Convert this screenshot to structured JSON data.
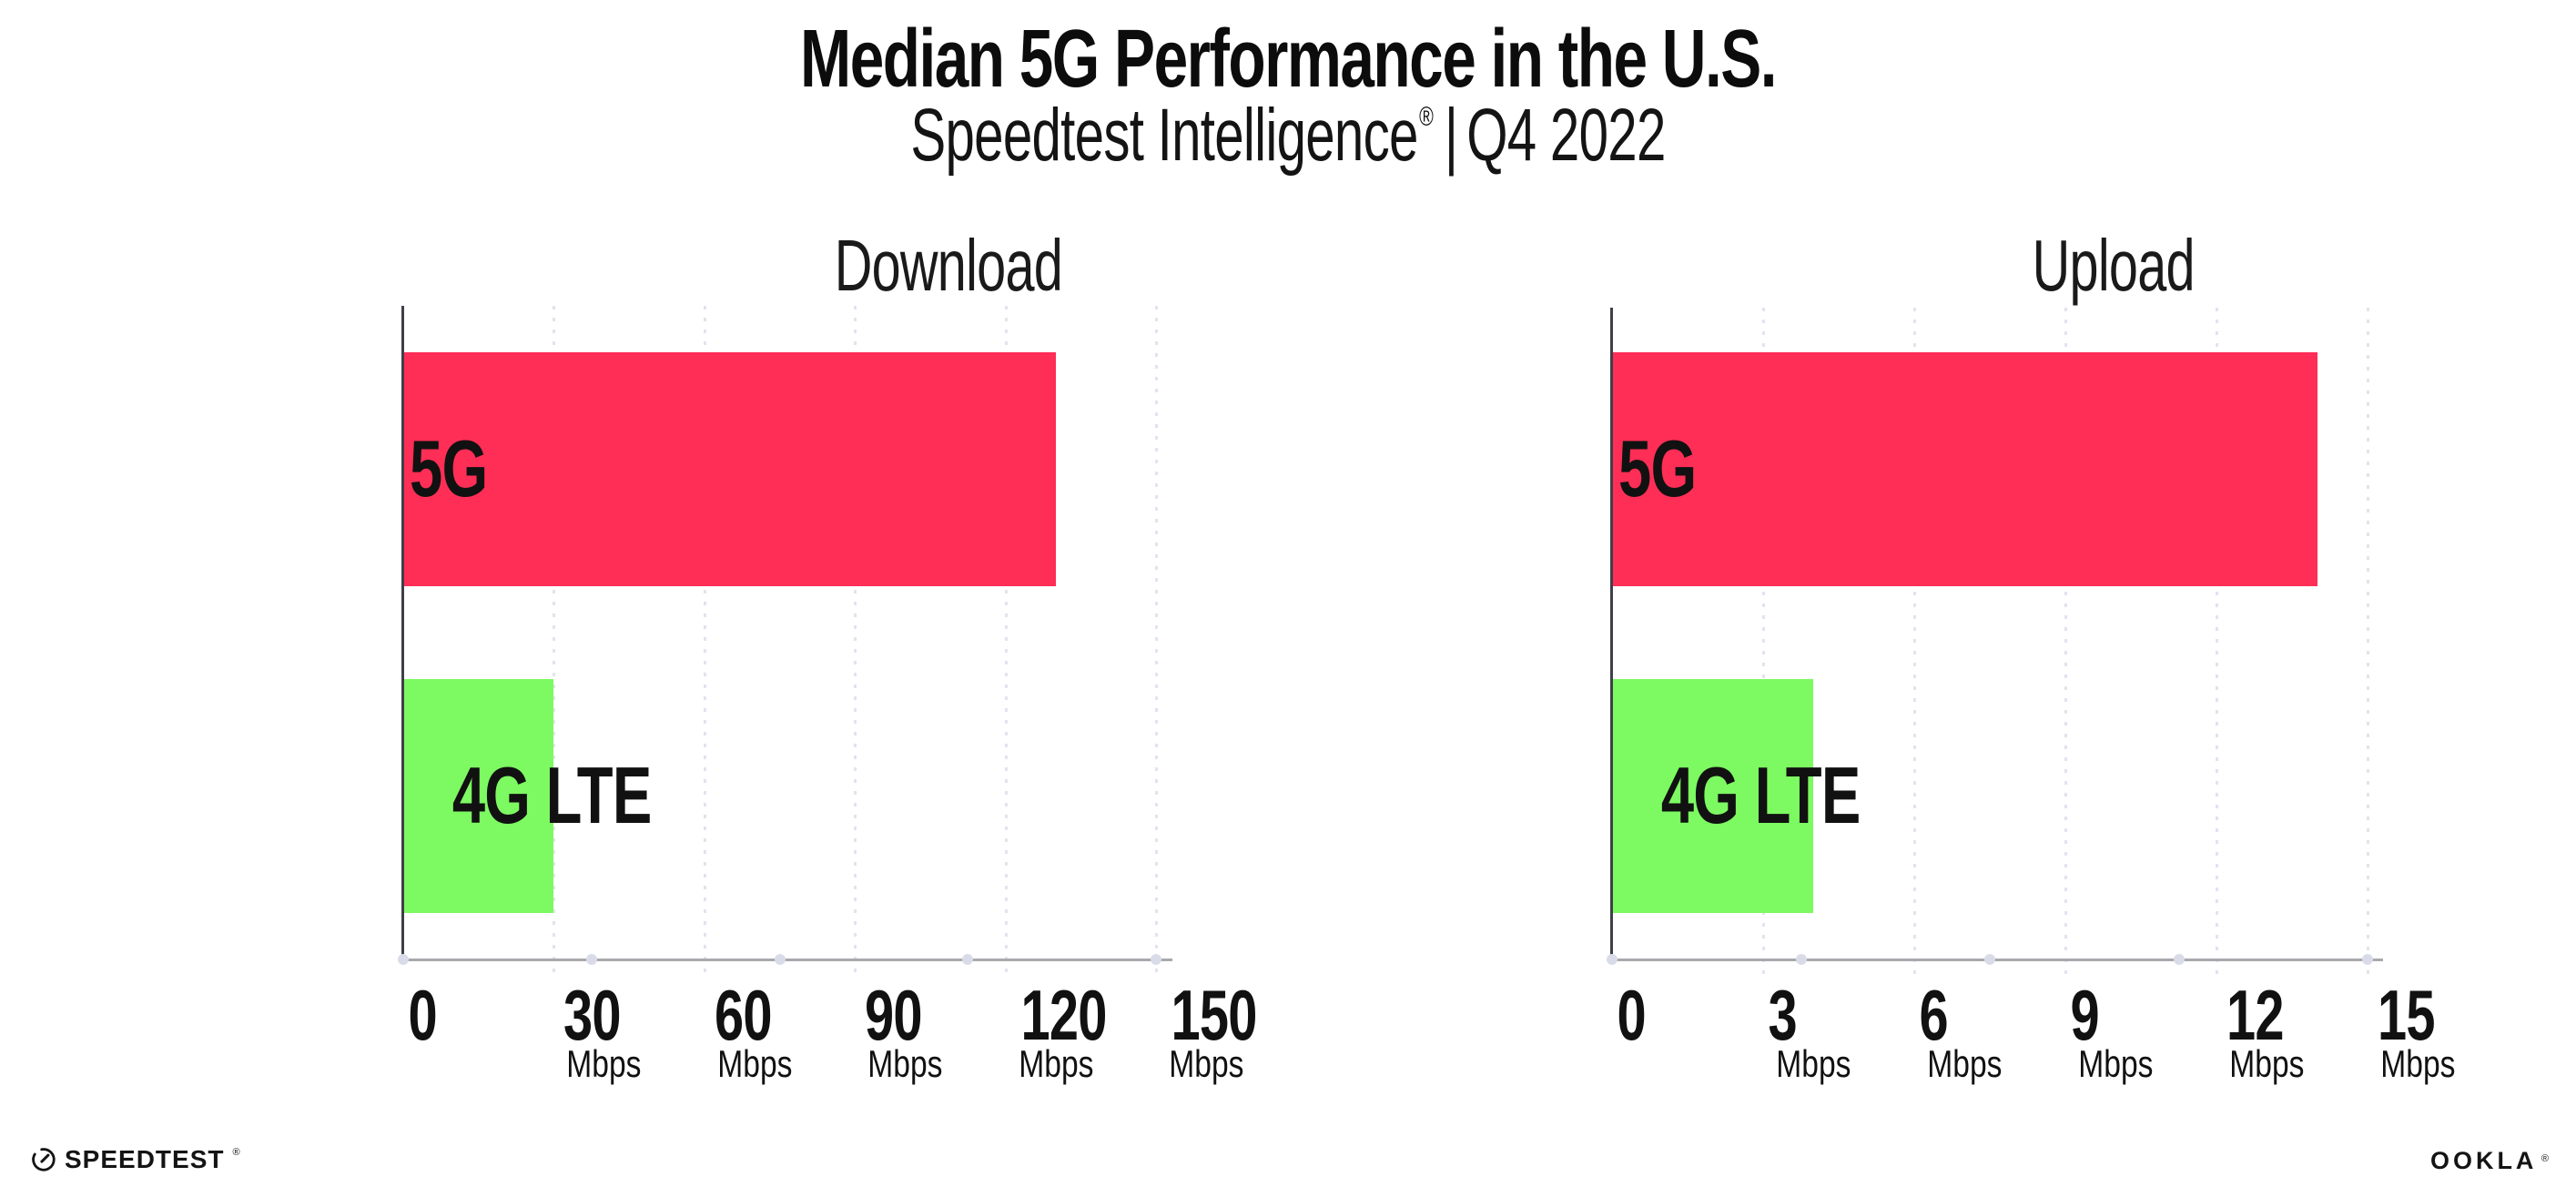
{
  "page": {
    "background": "#ffffff"
  },
  "header": {
    "title": "Median 5G Performance in the U.S.",
    "subtitle_brand": "Speedtest Intelligence",
    "subtitle_registered": "®",
    "subtitle_separator": "|",
    "subtitle_period": "Q4 2022"
  },
  "footer": {
    "speedtest_wordmark": "SPEEDTEST",
    "speedtest_registered": "®",
    "ookla_wordmark": "OOKLA",
    "ookla_registered": "®"
  },
  "colors": {
    "bar_5g": "#FF2E56",
    "bar_4g_lte": "#7DFA62",
    "axis_line": "#a8a8ad",
    "axis_spine": "#3f3f49",
    "gridline_dots": "#e2e3ef",
    "axis_tick_dots": "#d9dce8",
    "text": "#111111"
  },
  "chart_data": [
    {
      "type": "bar",
      "orientation": "horizontal",
      "title": "Download",
      "categories": [
        "5G",
        "4G LTE"
      ],
      "values": [
        130,
        30
      ],
      "unit": "Mbps",
      "xlim": [
        0,
        150
      ],
      "xticks": [
        0,
        30,
        60,
        90,
        120,
        150
      ],
      "series_colors": [
        "#FF2E56",
        "#7DFA62"
      ],
      "grid": "dotted vertical gridlines at each tick",
      "legend": "none"
    },
    {
      "type": "bar",
      "orientation": "horizontal",
      "title": "Upload",
      "categories": [
        "5G",
        "4G LTE"
      ],
      "values": [
        14,
        4
      ],
      "unit": "Mbps",
      "xlim": [
        0,
        15
      ],
      "xticks": [
        0,
        3,
        6,
        9,
        12,
        15
      ],
      "series_colors": [
        "#FF2E56",
        "#7DFA62"
      ],
      "grid": "dotted vertical gridlines at each tick",
      "legend": "none"
    }
  ]
}
